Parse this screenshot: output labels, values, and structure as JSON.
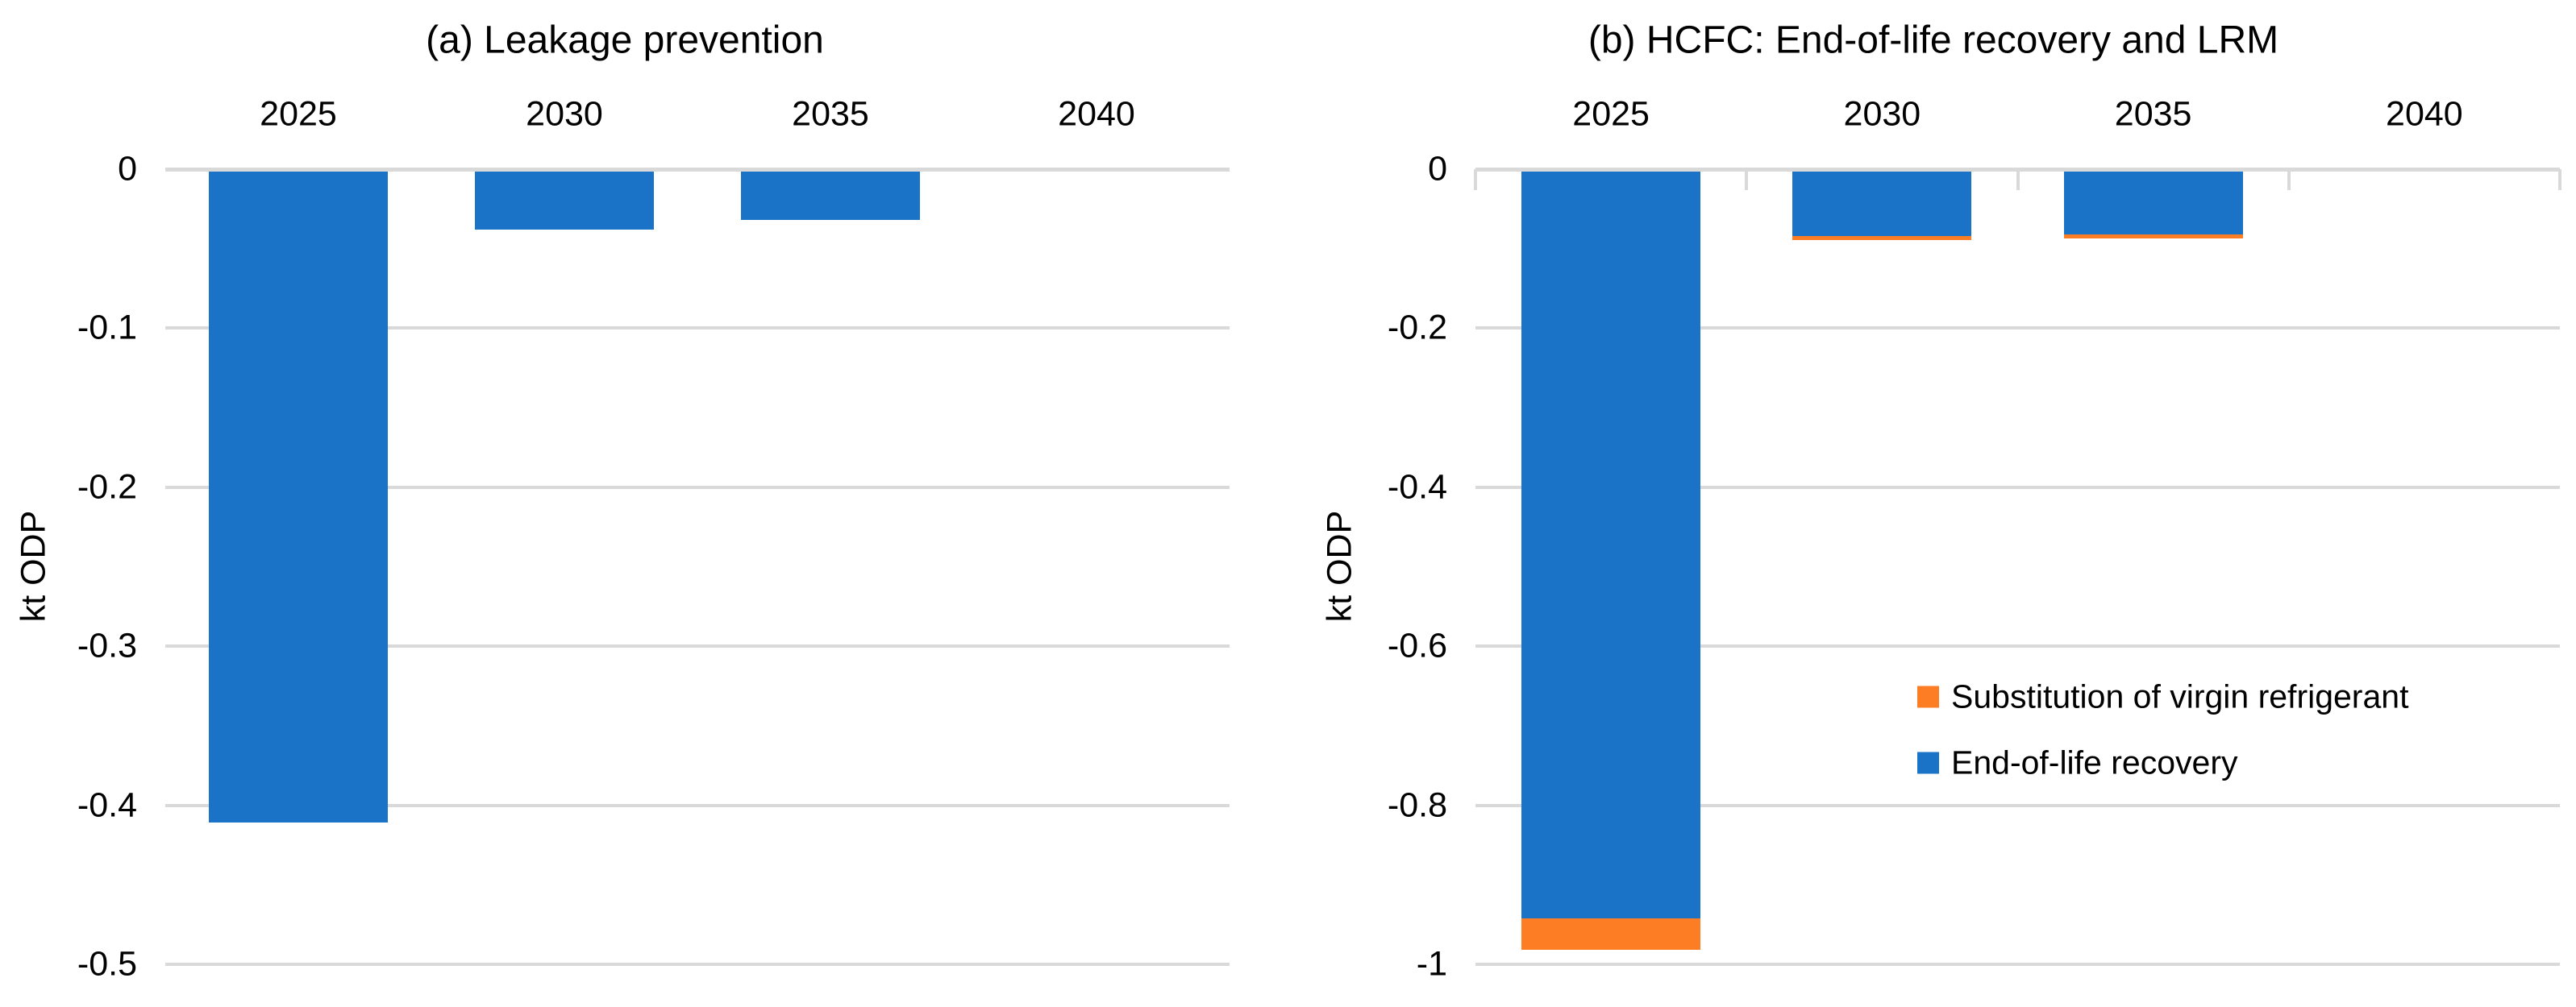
{
  "figure_colors": {
    "blue": "#1B73C7",
    "orange": "#FD7D24",
    "gridline": "#D9D9D9",
    "text": "#000000",
    "background": "#FFFFFF"
  },
  "chart_data": [
    {
      "type": "bar",
      "title": "(a) Leakage prevention",
      "ylabel": "kt ODP",
      "xlabel": "",
      "categories": [
        "2025",
        "2030",
        "2035",
        "2040"
      ],
      "series": [
        {
          "name": "Leakage prevention",
          "color": "#1B73C7",
          "values": [
            -0.41,
            -0.037,
            -0.031,
            0
          ]
        }
      ],
      "ylim": [
        -0.5,
        0
      ],
      "y_ticks": [
        0,
        -0.1,
        -0.2,
        -0.3,
        -0.4,
        -0.5
      ],
      "grid": true,
      "x_labels_position": "top",
      "legend": null
    },
    {
      "type": "stacked-bar",
      "title": "(b) HCFC: End-of-life recovery and LRM",
      "ylabel": "kt ODP",
      "xlabel": "",
      "categories": [
        "2025",
        "2030",
        "2035",
        "2040"
      ],
      "series": [
        {
          "name": "End-of-life recovery",
          "color": "#1B73C7",
          "values": [
            -0.94,
            -0.082,
            -0.08,
            0
          ]
        },
        {
          "name": "Substitution of virgin refrigerant",
          "color": "#FD7D24",
          "values": [
            -0.04,
            -0.005,
            -0.005,
            0
          ]
        }
      ],
      "ylim": [
        -1,
        0
      ],
      "y_ticks": [
        0,
        -0.2,
        -0.4,
        -0.6,
        -0.8,
        -1
      ],
      "grid": true,
      "x_labels_position": "top",
      "legend_position": "inside-right",
      "legend": {
        "items": [
          {
            "label": "Substitution of virgin refrigerant",
            "color": "#FD7D24"
          },
          {
            "label": "End-of-life recovery",
            "color": "#1B73C7"
          }
        ]
      }
    }
  ]
}
